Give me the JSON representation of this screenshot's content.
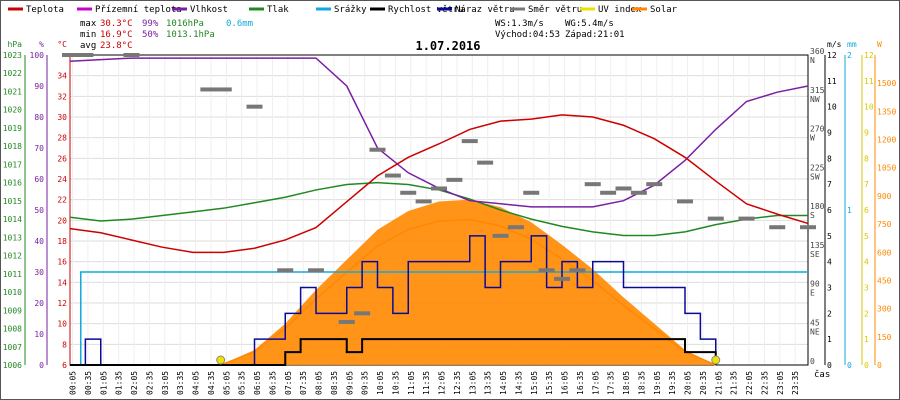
{
  "chart_data": {
    "type": "line",
    "title": "1.07.2016",
    "legend": [
      {
        "name": "Teplota",
        "color": "#cc0000"
      },
      {
        "name": "Přízemní teplota",
        "color": "#cc00cc"
      },
      {
        "name": "Vlhkost",
        "color": "#7a1fa2"
      },
      {
        "name": "Tlak",
        "color": "#228822"
      },
      {
        "name": "Srážky",
        "color": "#11aadd"
      },
      {
        "name": "Rychlost větru",
        "color": "#000000"
      },
      {
        "name": "Náraz větru",
        "color": "#0a0a99"
      },
      {
        "name": "Směr větru",
        "color": "#777777"
      },
      {
        "name": "UV index",
        "color": "#f0e000"
      },
      {
        "name": "Solar",
        "color": "#ff8800"
      }
    ],
    "stats": {
      "max_label": "max",
      "max_temp": "30.3°C",
      "max_hum": "99%",
      "max_press": "1016hPa",
      "rain": "0.6mm",
      "min_label": "min",
      "min_temp": "16.9°C",
      "min_hum": "50%",
      "min_press": "1013.1hPa",
      "avg_label": "avg",
      "avg_temp": "23.8°C",
      "ws": "WS:1.3m/s",
      "wg": "WG:5.4m/s",
      "sunrise": "Východ:04:53",
      "sunset": "Západ:21:01"
    },
    "x_unit_label": "čas",
    "x_ticks": [
      "00:05",
      "00:35",
      "01:05",
      "01:35",
      "02:05",
      "02:35",
      "03:05",
      "03:35",
      "04:05",
      "04:35",
      "05:05",
      "05:35",
      "06:05",
      "06:35",
      "07:05",
      "07:35",
      "08:05",
      "08:35",
      "09:05",
      "09:35",
      "10:05",
      "10:35",
      "11:05",
      "11:35",
      "12:05",
      "12:35",
      "13:05",
      "13:35",
      "14:05",
      "14:35",
      "15:05",
      "15:35",
      "16:05",
      "16:35",
      "17:05",
      "17:35",
      "18:05",
      "18:35",
      "19:05",
      "19:35",
      "20:05",
      "20:35",
      "21:05",
      "21:35",
      "22:05",
      "22:35",
      "23:05",
      "23:35"
    ],
    "axes": {
      "hPa": {
        "label": "hPa",
        "min": 1006,
        "max": 1023,
        "ticks": [
          1006,
          1007,
          1008,
          1009,
          1010,
          1011,
          1012,
          1013,
          1014,
          1015,
          1016,
          1017,
          1018,
          1019,
          1020,
          1021,
          1022,
          1023
        ]
      },
      "pct": {
        "label": "%",
        "min": 0,
        "max": 100,
        "ticks": [
          0,
          10,
          20,
          30,
          40,
          50,
          60,
          70,
          80,
          90,
          100
        ]
      },
      "degC": {
        "label": "°C",
        "min": 6,
        "max": 36,
        "ticks": [
          6,
          8,
          10,
          12,
          14,
          16,
          18,
          20,
          22,
          24,
          26,
          28,
          30,
          32,
          34
        ]
      },
      "dir": {
        "min": 0,
        "max": 360,
        "ticks": [
          0,
          45,
          90,
          135,
          180,
          225,
          270,
          315,
          360
        ],
        "names": [
          "",
          "NE",
          "E",
          "SE",
          "S",
          "SW",
          "W",
          "NW",
          "N"
        ]
      },
      "ms": {
        "label": "m/s",
        "min": 0,
        "max": 12,
        "ticks": [
          0,
          1,
          2,
          3,
          4,
          5,
          6,
          7,
          8,
          9,
          10,
          11,
          12
        ]
      },
      "mm": {
        "label": "mm",
        "min": 0,
        "max": 2,
        "ticks": [
          0,
          1,
          2
        ]
      },
      "uv": {
        "min": 0,
        "max": 12,
        "ticks": [
          0,
          1,
          2,
          3,
          4,
          5,
          6,
          7,
          8,
          9,
          10,
          11,
          12
        ]
      },
      "W": {
        "label": "W",
        "min": 0,
        "max": 1650,
        "ticks": [
          0,
          150,
          300,
          450,
          600,
          750,
          900,
          1050,
          1200,
          1350,
          1500
        ]
      }
    },
    "series": [
      {
        "name": "Teplota",
        "axis": "degC",
        "color": "#cc0000",
        "x": [
          0,
          1,
          2,
          3,
          4,
          5,
          6,
          7,
          8,
          9,
          10,
          11,
          12,
          13,
          14,
          15,
          16,
          17,
          18,
          19,
          20,
          21,
          22,
          23,
          24
        ],
        "values": [
          19.2,
          18.8,
          18.1,
          17.4,
          16.9,
          16.9,
          17.3,
          18.1,
          19.3,
          21.8,
          24.3,
          26.1,
          27.4,
          28.8,
          29.6,
          29.8,
          30.2,
          30.0,
          29.2,
          27.9,
          26.1,
          23.8,
          21.6,
          20.6,
          19.7
        ]
      },
      {
        "name": "Vlhkost",
        "axis": "pct",
        "color": "#7a1fa2",
        "x": [
          0,
          1,
          2,
          3,
          4,
          5,
          6,
          7,
          8,
          9,
          10,
          11,
          12,
          13,
          14,
          15,
          16,
          17,
          18,
          19,
          20,
          21,
          22,
          23,
          24
        ],
        "values": [
          98,
          98.5,
          99,
          99,
          99,
          99,
          99,
          99,
          99,
          90,
          70,
          62,
          57,
          53,
          52,
          51,
          51,
          51,
          53,
          58,
          66,
          76,
          85,
          88,
          90
        ]
      },
      {
        "name": "Tlak",
        "axis": "hPa",
        "color": "#228822",
        "x": [
          0,
          1,
          2,
          3,
          4,
          5,
          6,
          7,
          8,
          9,
          10,
          11,
          12,
          13,
          14,
          15,
          16,
          17,
          18,
          19,
          20,
          21,
          22,
          23,
          24
        ],
        "values": [
          1014.1,
          1013.9,
          1014.0,
          1014.2,
          1014.4,
          1014.6,
          1014.9,
          1015.2,
          1015.6,
          1015.9,
          1016.0,
          1015.9,
          1015.6,
          1015.1,
          1014.5,
          1014.0,
          1013.6,
          1013.3,
          1013.1,
          1013.1,
          1013.3,
          1013.7,
          1014.0,
          1014.2,
          1014.2
        ]
      },
      {
        "name": "Srážky",
        "axis": "mm",
        "color": "#11aadd",
        "x": [
          0,
          0.3,
          0.35,
          24
        ],
        "values": [
          0,
          0,
          0.6,
          0.6
        ]
      },
      {
        "name": "Rychlost větru",
        "axis": "ms",
        "color": "#000000",
        "x": [
          0,
          4,
          6,
          7,
          7.5,
          8,
          9,
          9.5,
          10,
          11,
          12,
          13,
          14,
          15,
          16,
          17,
          18,
          19,
          20,
          21
        ],
        "values": [
          0,
          0,
          0,
          0.5,
          1,
          1,
          0.5,
          1,
          1,
          1,
          1,
          1,
          1,
          1,
          1,
          1,
          1,
          1,
          0.5,
          0
        ]
      },
      {
        "name": "Náraz větru",
        "axis": "ms",
        "color": "#0a0a99",
        "x": [
          0,
          0.5,
          1,
          4,
          6,
          7,
          7.5,
          8,
          9,
          9.5,
          10,
          10.5,
          11,
          12,
          13,
          13.5,
          14,
          15,
          15.5,
          16,
          16.5,
          17,
          18,
          19,
          20,
          20.5,
          21
        ],
        "values": [
          0,
          1,
          0,
          0,
          1,
          2,
          3,
          2,
          3,
          4,
          3,
          2,
          4,
          4,
          5,
          3,
          4,
          5,
          3,
          4,
          3,
          4,
          3,
          3,
          2,
          1,
          0
        ]
      },
      {
        "name": "Solar",
        "axis": "W",
        "color": "#ff8800",
        "x": [
          4.9,
          6,
          7,
          8,
          9,
          10,
          11,
          12,
          13,
          14,
          15,
          16,
          17,
          18,
          19,
          20,
          21.0
        ],
        "values": [
          0,
          80,
          220,
          400,
          560,
          720,
          820,
          870,
          880,
          840,
          760,
          640,
          510,
          360,
          220,
          80,
          0
        ]
      }
    ],
    "wind_direction": {
      "x": [
        0,
        0.5,
        2,
        4.5,
        5,
        6,
        7,
        8,
        9,
        9.5,
        10,
        10.5,
        11,
        11.5,
        12,
        12.5,
        13,
        13.5,
        14,
        14.5,
        15,
        15.5,
        16,
        16.5,
        17,
        17.5,
        18,
        18.5,
        19,
        20,
        21,
        22,
        23,
        24
      ],
      "values": [
        360,
        360,
        360,
        320,
        320,
        300,
        110,
        110,
        50,
        60,
        250,
        220,
        200,
        190,
        205,
        215,
        260,
        235,
        150,
        160,
        200,
        110,
        100,
        110,
        210,
        200,
        205,
        200,
        210,
        190,
        170,
        170,
        160,
        160
      ]
    },
    "uv_points": {
      "x": [
        4.9,
        21.0
      ],
      "values": [
        0,
        0
      ]
    }
  }
}
